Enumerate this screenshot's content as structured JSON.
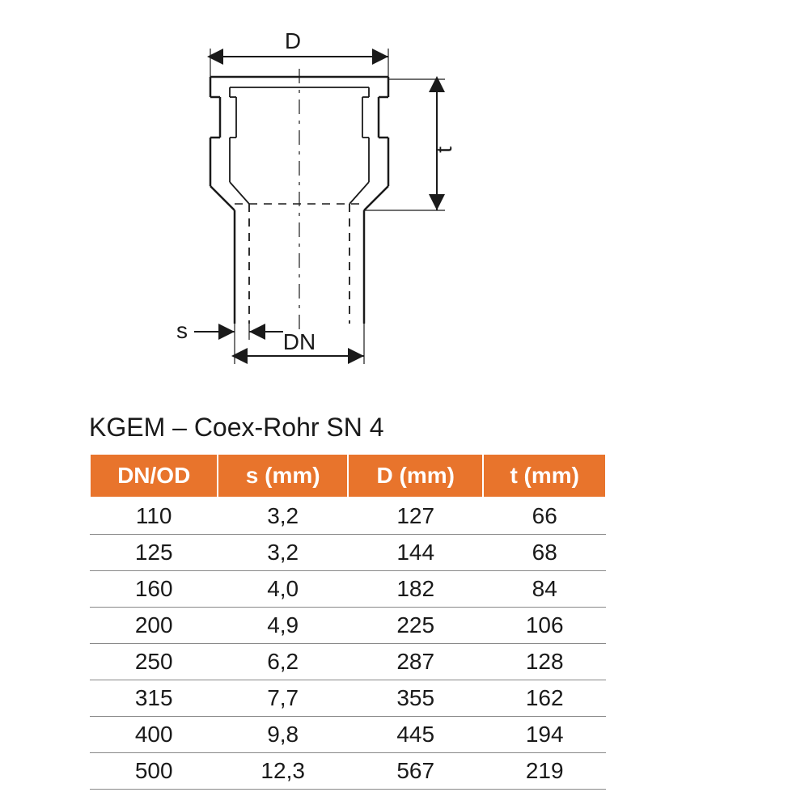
{
  "diagram": {
    "labels": {
      "D": "D",
      "t": "t",
      "s": "s",
      "DN": "DN"
    },
    "stroke": "#1a1a1a",
    "stroke_width_main": 2.5,
    "stroke_width_thin": 1.2,
    "font_size": 28,
    "font_family": "Arial"
  },
  "table": {
    "title": "KGEM – Coex-Rohr SN 4",
    "title_fontsize": 32,
    "header_bg": "#e8742c",
    "header_fg": "#ffffff",
    "cell_fg": "#1a1a1a",
    "border_color": "#888888",
    "cell_fontsize": 28,
    "columns": [
      "DN/OD",
      "s (mm)",
      "D (mm)",
      "t (mm)"
    ],
    "rows": [
      [
        "110",
        "3,2",
        "127",
        "66"
      ],
      [
        "125",
        "3,2",
        "144",
        "68"
      ],
      [
        "160",
        "4,0",
        "182",
        "84"
      ],
      [
        "200",
        "4,9",
        "225",
        "106"
      ],
      [
        "250",
        "6,2",
        "287",
        "128"
      ],
      [
        "315",
        "7,7",
        "355",
        "162"
      ],
      [
        "400",
        "9,8",
        "445",
        "194"
      ],
      [
        "500",
        "12,3",
        "567",
        "219"
      ]
    ]
  }
}
